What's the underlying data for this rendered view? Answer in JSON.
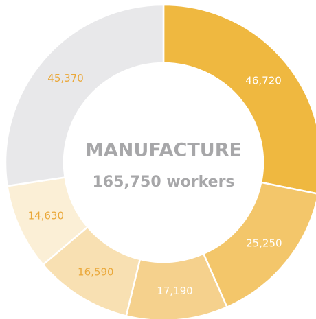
{
  "chart_data": {
    "type": "donut",
    "center_title": "MANUFACTURE",
    "center_subtitle": "165,750 workers",
    "values": [
      46720,
      25250,
      17190,
      16590,
      14630,
      45370
    ],
    "value_labels": [
      "46,720",
      "25,250",
      "17,190",
      "16,590",
      "14,630",
      "45,370"
    ],
    "colors": [
      "#efb840",
      "#f3c66a",
      "#f5d18d",
      "#f8e0b2",
      "#fbefd6",
      "#e8e8ea"
    ],
    "label_colors": [
      "#ffffff",
      "#ffffff",
      "#ffffff",
      "#eaa83a",
      "#eaa83a",
      "#eaa83a"
    ]
  }
}
